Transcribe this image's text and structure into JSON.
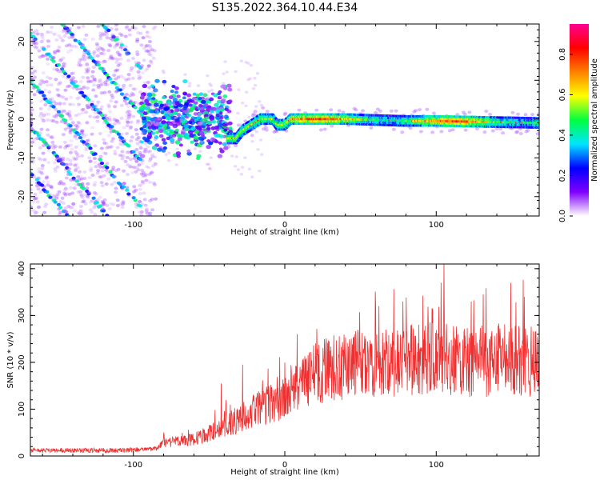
{
  "title": "S135.2022.364.10.44.E34",
  "chart_data": [
    {
      "type": "heatmap",
      "xlabel": "Height of straight line (km)",
      "ylabel": "Frequency (Hz)",
      "xlim": [
        -168,
        168
      ],
      "ylim": [
        -25,
        24.5
      ],
      "x_ticks": [
        -100,
        0,
        100
      ],
      "y_ticks": [
        -20,
        -10,
        0,
        10,
        20
      ],
      "grid": false,
      "colorbar": {
        "label": "Normalized spectral amplitude",
        "range": [
          0,
          0.95
        ],
        "ticks": [
          0.0,
          0.2,
          0.4,
          0.6,
          0.8
        ],
        "colors": [
          "#ffffff",
          "#8000ff",
          "#0000ff",
          "#00e5ff",
          "#00ff40",
          "#ffff00",
          "#ff8000",
          "#ff0000",
          "#ff0090"
        ]
      },
      "features": {
        "diagonal_bands": {
          "x_range": [
            -168,
            -95
          ],
          "slope_hz_per_km": -0.45,
          "spacing_hz": 12,
          "amplitude": 0.35
        },
        "scattered_cluster": {
          "x_range": [
            -95,
            -35
          ],
          "y_range": [
            -6,
            6
          ],
          "amplitude": 0.45
        },
        "main_ridge": [
          {
            "x": -38,
            "y": -5
          },
          {
            "x": -32,
            "y": -5
          },
          {
            "x": -28,
            "y": -3
          },
          {
            "x": -22,
            "y": -1.5
          },
          {
            "x": -16,
            "y": 0
          },
          {
            "x": -8,
            "y": 0
          },
          {
            "x": -5,
            "y": -1.5
          },
          {
            "x": 0,
            "y": -1.5
          },
          {
            "x": 4,
            "y": 0
          },
          {
            "x": 40,
            "y": 0
          },
          {
            "x": 80,
            "y": -0.5
          },
          {
            "x": 100,
            "y": -0.5
          },
          {
            "x": 168,
            "y": -1
          }
        ]
      }
    },
    {
      "type": "line",
      "xlabel": "Height of straight line (km)",
      "ylabel": "SNR (10 * v/v)",
      "xlim": [
        -168,
        168
      ],
      "ylim": [
        0,
        410
      ],
      "x_ticks": [
        -100,
        0,
        100
      ],
      "y_ticks": [
        0,
        100,
        200,
        300,
        400
      ],
      "grid": false,
      "color": "#f03030",
      "trend": [
        {
          "x": -168,
          "y": 12
        },
        {
          "x": -110,
          "y": 12
        },
        {
          "x": -85,
          "y": 15
        },
        {
          "x": -80,
          "y": 28
        },
        {
          "x": -60,
          "y": 35
        },
        {
          "x": -45,
          "y": 55
        },
        {
          "x": -30,
          "y": 80
        },
        {
          "x": -15,
          "y": 105
        },
        {
          "x": 0,
          "y": 120
        },
        {
          "x": 10,
          "y": 150
        },
        {
          "x": 20,
          "y": 175
        },
        {
          "x": 40,
          "y": 195
        },
        {
          "x": 60,
          "y": 200
        },
        {
          "x": 80,
          "y": 205
        },
        {
          "x": 100,
          "y": 210
        },
        {
          "x": 120,
          "y": 200
        },
        {
          "x": 140,
          "y": 205
        },
        {
          "x": 168,
          "y": 205
        }
      ],
      "spikes": [
        {
          "x": 105,
          "y": 410
        },
        {
          "x": 103,
          "y": 370
        },
        {
          "x": 131,
          "y": 345
        },
        {
          "x": 158,
          "y": 340
        },
        {
          "x": 123,
          "y": 330
        },
        {
          "x": 78,
          "y": 330
        },
        {
          "x": 60,
          "y": 320
        },
        {
          "x": 97,
          "y": 315
        },
        {
          "x": 8,
          "y": 260
        },
        {
          "x": -28,
          "y": 195
        },
        {
          "x": -42,
          "y": 155
        }
      ]
    }
  ]
}
